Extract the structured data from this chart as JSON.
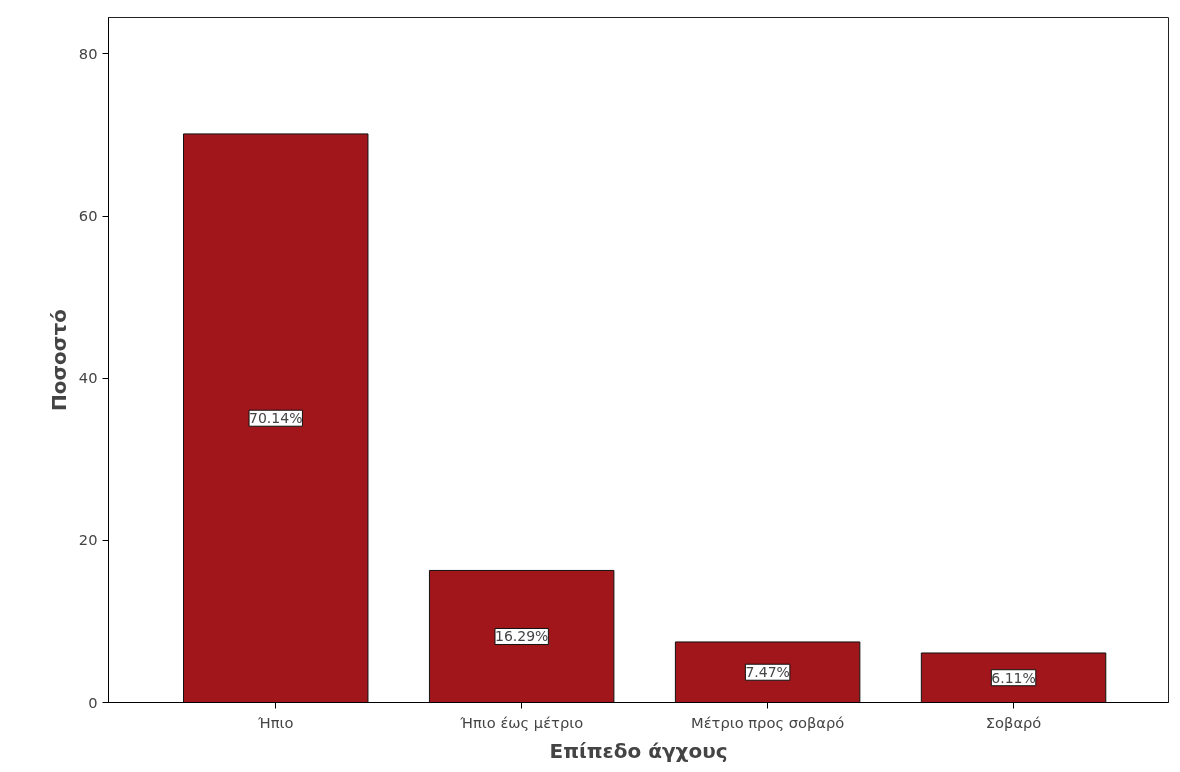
{
  "chart_data": {
    "type": "bar",
    "xlabel": "Επίπεδο άγχους",
    "ylabel": "Ποσοστό",
    "categories": [
      "Ήπιο",
      "Ήπιο έως μέτριο",
      "Μέτριο προς σοβαρό",
      "Σοβαρό"
    ],
    "values": [
      70.14,
      16.29,
      7.47,
      6.11
    ],
    "value_labels": [
      "70.14%",
      "16.29%",
      "7.47%",
      "6.11%"
    ],
    "color": "#a0161a",
    "ylim": [
      0,
      84.5
    ],
    "yticks": [
      0,
      20,
      40,
      60,
      80
    ],
    "grid": false
  }
}
